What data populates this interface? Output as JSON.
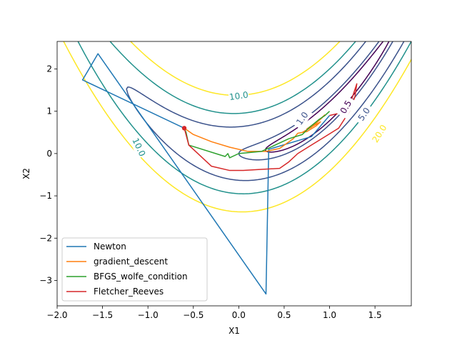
{
  "chart_data": {
    "type": "line",
    "title": "",
    "xlabel": "X1",
    "ylabel": "X2",
    "xlim": [
      -2.0,
      1.9
    ],
    "ylim": [
      -3.6,
      2.65
    ],
    "xticks": [
      "−2.0",
      "−1.5",
      "−1.0",
      "−0.5",
      "0.0",
      "0.5",
      "1.0",
      "1.5"
    ],
    "xtick_values": [
      -2.0,
      -1.5,
      -1.0,
      -0.5,
      0.0,
      0.5,
      1.0,
      1.5
    ],
    "yticks": [
      "−3",
      "−2",
      "−1",
      "0",
      "1",
      "2"
    ],
    "ytick_values": [
      -3,
      -2,
      -1,
      0,
      1,
      2
    ],
    "legend_position": "lower-left",
    "contours": [
      {
        "level": 0.5,
        "label": "0.5",
        "color": "#440154",
        "label_pos": [
          1.18,
          1.1
        ],
        "label_rot": -60
      },
      {
        "level": 1.0,
        "label": "1.0",
        "color": "#3b528b",
        "label_pos": [
          0.7,
          0.83
        ],
        "label_rot": -55
      },
      {
        "level": 5.0,
        "label": "5.0",
        "color": "#3b528b",
        "label_pos": [
          1.38,
          0.93
        ],
        "label_rot": -55
      },
      {
        "level": 10.0,
        "label": "10.0",
        "color": "#21918c",
        "label_pos": [
          0.0,
          1.36
        ],
        "label_rot": -8
      },
      {
        "level": 10.0,
        "label": "10.0",
        "color": "#21918c",
        "label_pos": [
          -1.1,
          0.15
        ],
        "label_rot": 65
      },
      {
        "level": 20.0,
        "label": "20.0",
        "color": "#fde725",
        "label_pos": [
          1.55,
          0.47
        ],
        "label_rot": -58
      }
    ],
    "series": [
      {
        "name": "Newton",
        "color": "#1f77b4",
        "x": [
          -0.6,
          -1.72,
          -1.55,
          0.3,
          0.33,
          0.8,
          1.0
        ],
        "y": [
          0.6,
          1.74,
          2.36,
          -3.32,
          0.1,
          0.4,
          0.9
        ]
      },
      {
        "name": "gradient_descent",
        "color": "#ff7f0e",
        "x": [
          -0.6,
          -0.5,
          -0.3,
          -0.1,
          0.1,
          0.3,
          0.45,
          0.6,
          0.65,
          0.75,
          0.85,
          0.9,
          0.7,
          0.8,
          0.92,
          0.75,
          0.88,
          0.95
        ],
        "y": [
          0.6,
          0.45,
          0.28,
          0.15,
          0.05,
          0.05,
          0.12,
          0.35,
          0.48,
          0.52,
          0.65,
          0.75,
          0.5,
          0.62,
          0.85,
          0.58,
          0.78,
          0.92
        ]
      },
      {
        "name": "BFGS_wolfe_condition",
        "color": "#2ca02c",
        "x": [
          -0.6,
          -0.58,
          -0.55,
          -0.15,
          -0.12,
          -0.1,
          0.0,
          0.25,
          0.55,
          0.7,
          0.78,
          0.88,
          0.95,
          1.0
        ],
        "y": [
          0.6,
          0.5,
          0.2,
          -0.07,
          0.0,
          -0.1,
          0.0,
          0.05,
          0.35,
          0.45,
          0.62,
          0.8,
          0.9,
          1.0
        ]
      },
      {
        "name": "Fletcher_Reeves",
        "color": "#d62728",
        "x": [
          -0.6,
          -0.55,
          -0.3,
          -0.1,
          0.05,
          0.2,
          0.45,
          0.55,
          0.65,
          0.8,
          0.95,
          1.1,
          1.22,
          1.28,
          1.3,
          1.2,
          1.0
        ],
        "y": [
          0.6,
          0.2,
          -0.3,
          -0.4,
          -0.4,
          -0.38,
          -0.35,
          -0.2,
          0.0,
          0.2,
          0.4,
          0.6,
          1.0,
          1.35,
          1.65,
          1.0,
          0.9
        ]
      }
    ],
    "start_point": {
      "x": -0.6,
      "y": 0.6
    }
  }
}
